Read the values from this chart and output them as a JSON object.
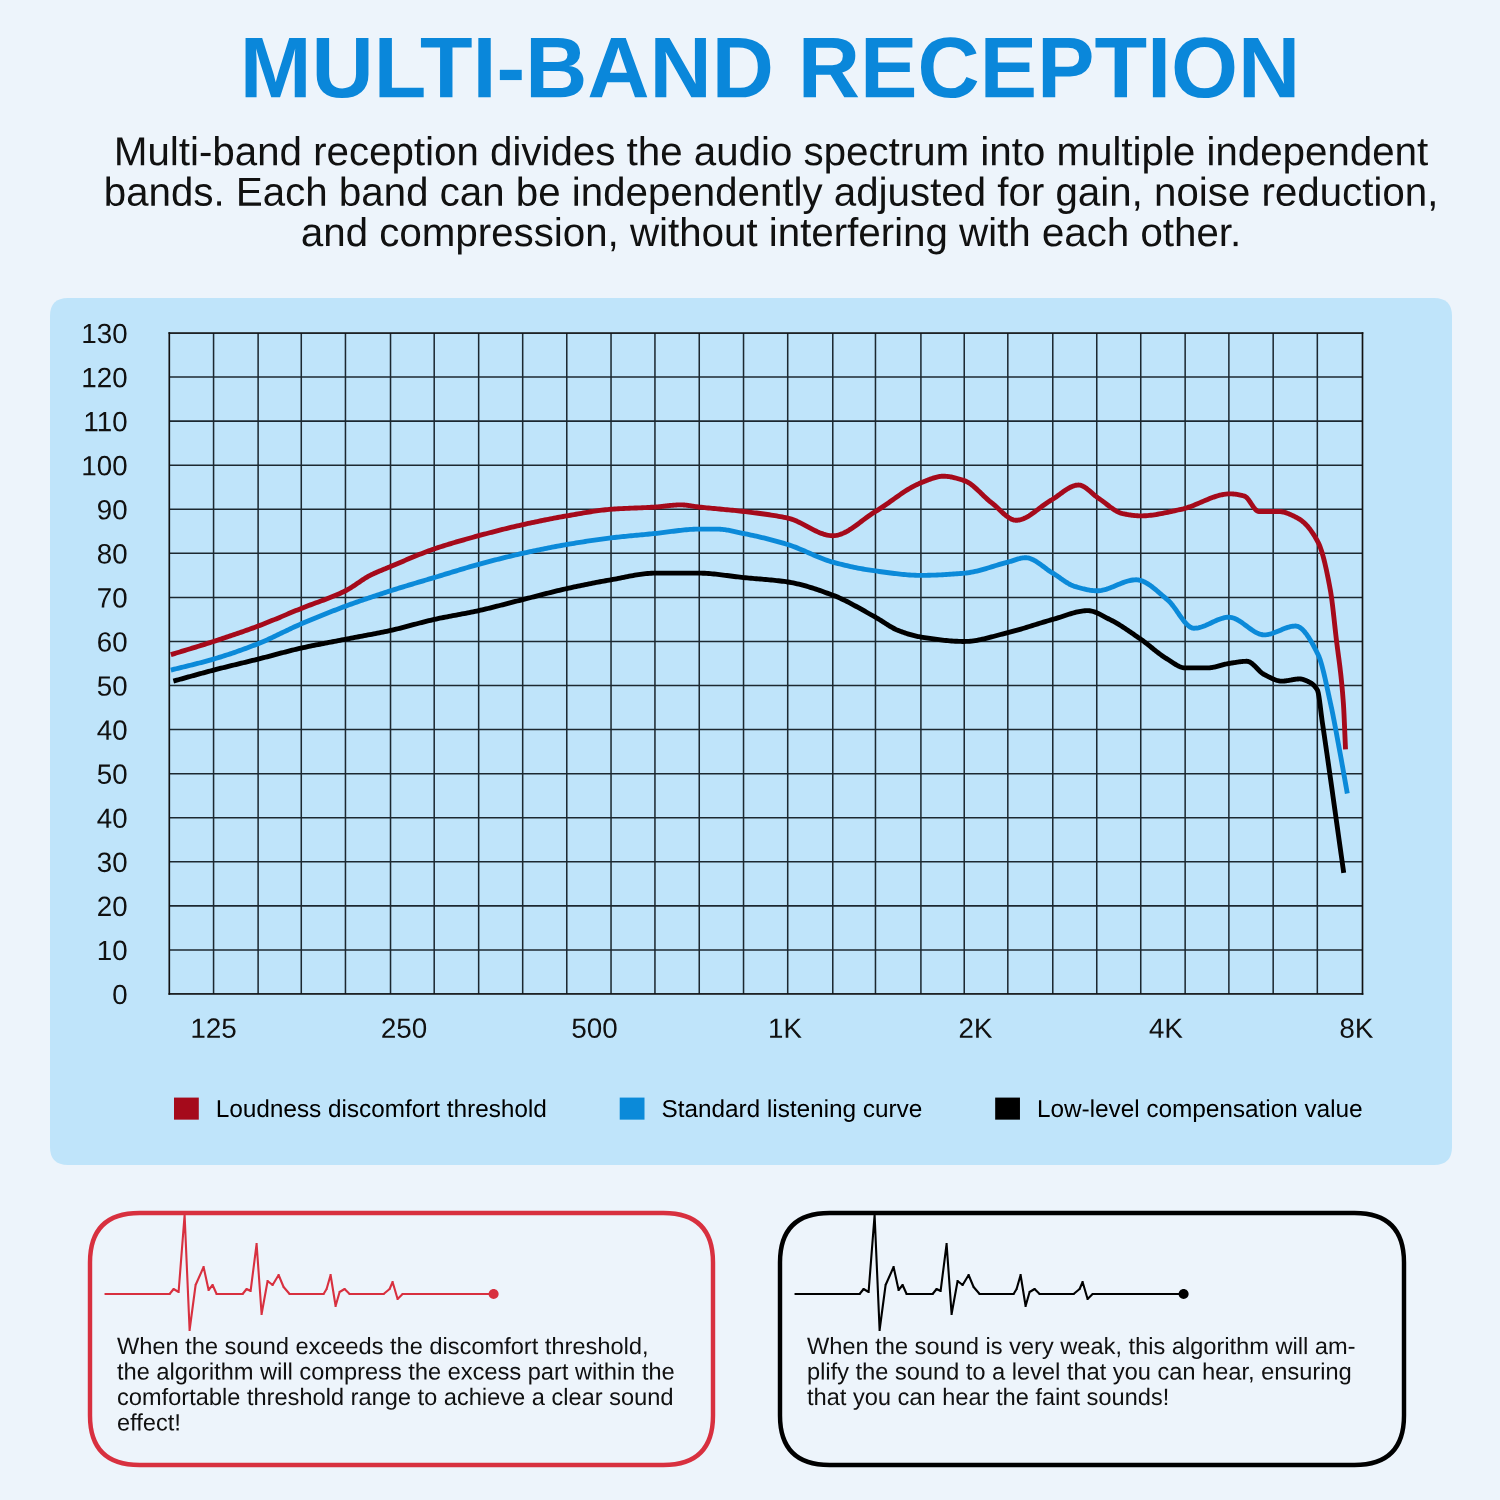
{
  "chart_data": {
    "type": "line",
    "title": "MULTI-BAND RECEPTION",
    "subtitle": "Multi-band reception divides the audio spectrum into multiple independent\nbands. Each band can be independently adjusted for gain, noise reduction,\nand compression, without interfering with each other.",
    "log": "x",
    "xlim": [
      106.4,
      8180
    ],
    "xticks": [
      125,
      250,
      500,
      {
        "value": 1000,
        "label": "1K"
      },
      {
        "value": 2000,
        "label": "2K"
      },
      {
        "value": 4000,
        "label": "4K"
      },
      {
        "value": 8000,
        "label": "8K"
      },
      {
        "value": 125,
        "label": null
      },
      {
        "value": 147,
        "label": null
      },
      {
        "value": 172,
        "label": null
      },
      {
        "value": 202,
        "label": null
      },
      {
        "value": 238,
        "label": null
      },
      {
        "value": 279,
        "label": null
      },
      {
        "value": 328,
        "label": null
      },
      {
        "value": 385,
        "label": null
      },
      {
        "value": 452,
        "label": null
      },
      {
        "value": 531,
        "label": null
      },
      {
        "value": 623,
        "label": null
      },
      {
        "value": 732,
        "label": null
      },
      {
        "value": 860,
        "label": null
      },
      {
        "value": 1010,
        "label": null
      },
      {
        "value": 1190,
        "label": null
      },
      {
        "value": 1390,
        "label": null
      },
      {
        "value": 1640,
        "label": null
      },
      {
        "value": 1920,
        "label": null
      },
      {
        "value": 2250,
        "label": null
      },
      {
        "value": 2650,
        "label": null
      },
      {
        "value": 3110,
        "label": null
      },
      {
        "value": 3650,
        "label": null
      },
      {
        "value": 4290,
        "label": null
      },
      {
        "value": 5030,
        "label": null
      },
      {
        "value": 5910,
        "label": null
      },
      {
        "value": 6940,
        "label": null
      }
    ],
    "ylim": [
      -20,
      130
    ],
    "yticks": [
      40,
      50,
      60,
      70,
      80,
      90,
      100,
      110,
      120,
      130
    ],
    "y2lim": [
      0,
      150
    ],
    "y2ticks": [
      0,
      10,
      20,
      30,
      40,
      50
    ],
    "grid": true,
    "legend": "bottom",
    "series": [
      {
        "name": "Loudness discomfort threshold",
        "color": "#a50a1b",
        "x": [
          107,
          125,
          147,
          172,
          202,
          221,
          238,
          279,
          328,
          385,
          452,
          531,
          623,
          684,
          732,
          860,
          1010,
          1190,
          1390,
          1640,
          1780,
          1920,
          2120,
          2320,
          2630,
          2910,
          3130,
          3420,
          3650,
          4230,
          5050,
          5320,
          5610,
          6020,
          6460,
          6960,
          7280,
          7430,
          7630,
          7690
        ],
        "values": [
          57,
          60,
          63.5,
          67.5,
          71.5,
          75,
          77,
          81,
          84,
          86.5,
          88.5,
          90,
          90.5,
          91,
          90.5,
          89.5,
          88,
          84,
          89.5,
          96,
          97.5,
          96.5,
          91.5,
          87.5,
          92,
          95.5,
          92.5,
          89,
          88.5,
          90,
          93.5,
          93,
          89.5,
          89.5,
          88,
          82.5,
          71.5,
          61,
          46,
          35.5
        ]
      },
      {
        "name": "Standard listening curve",
        "color": "#0b8ad9",
        "x": [
          107,
          125,
          147,
          172,
          202,
          238,
          279,
          328,
          385,
          452,
          531,
          623,
          732,
          781,
          860,
          1010,
          1190,
          1390,
          1640,
          1920,
          2250,
          2400,
          2650,
          2870,
          3110,
          3590,
          4020,
          4430,
          5030,
          5720,
          6410,
          6960,
          7280,
          7510,
          7740
        ],
        "values": [
          53.5,
          56,
          59.5,
          64,
          68,
          71.5,
          74.5,
          77.5,
          80,
          82,
          83.5,
          84.5,
          85.5,
          85.5,
          84.5,
          82,
          78,
          76,
          75,
          75.5,
          78,
          79,
          75.5,
          72.5,
          71.5,
          74,
          69.5,
          63,
          65.5,
          61.5,
          63.5,
          57,
          46,
          36,
          25.5
        ]
      },
      {
        "name": "Low-level compensation value",
        "color": "#000000",
        "x": [
          108,
          125,
          147,
          172,
          202,
          238,
          279,
          328,
          385,
          452,
          531,
          623,
          732,
          860,
          1010,
          1190,
          1390,
          1510,
          1640,
          1920,
          2250,
          2650,
          3010,
          3260,
          3650,
          4020,
          4290,
          4650,
          5030,
          5370,
          5720,
          6100,
          6510,
          6690,
          6940,
          7070,
          7640
        ],
        "values": [
          51,
          53.5,
          56,
          58.5,
          60.5,
          62.5,
          65,
          67,
          69.5,
          72,
          74,
          75.5,
          75.5,
          74.5,
          73.5,
          70.5,
          65.5,
          62.5,
          61,
          60,
          62,
          65,
          67,
          65,
          60.5,
          56,
          54,
          54,
          55,
          55.5,
          52.5,
          51,
          51.5,
          51,
          49,
          41.5,
          7.5
        ]
      }
    ],
    "annotations": [
      "When the sound exceeds the discomfort threshold,\nthe algorithm will compress the excess part within the\ncomfortable threshold range to achieve a clear sound\neffect!",
      "When the sound is very weak, this algorithm will am-\nplify the sound to a level that you can hear, ensuring\nthat you can hear the faint sounds!"
    ]
  }
}
